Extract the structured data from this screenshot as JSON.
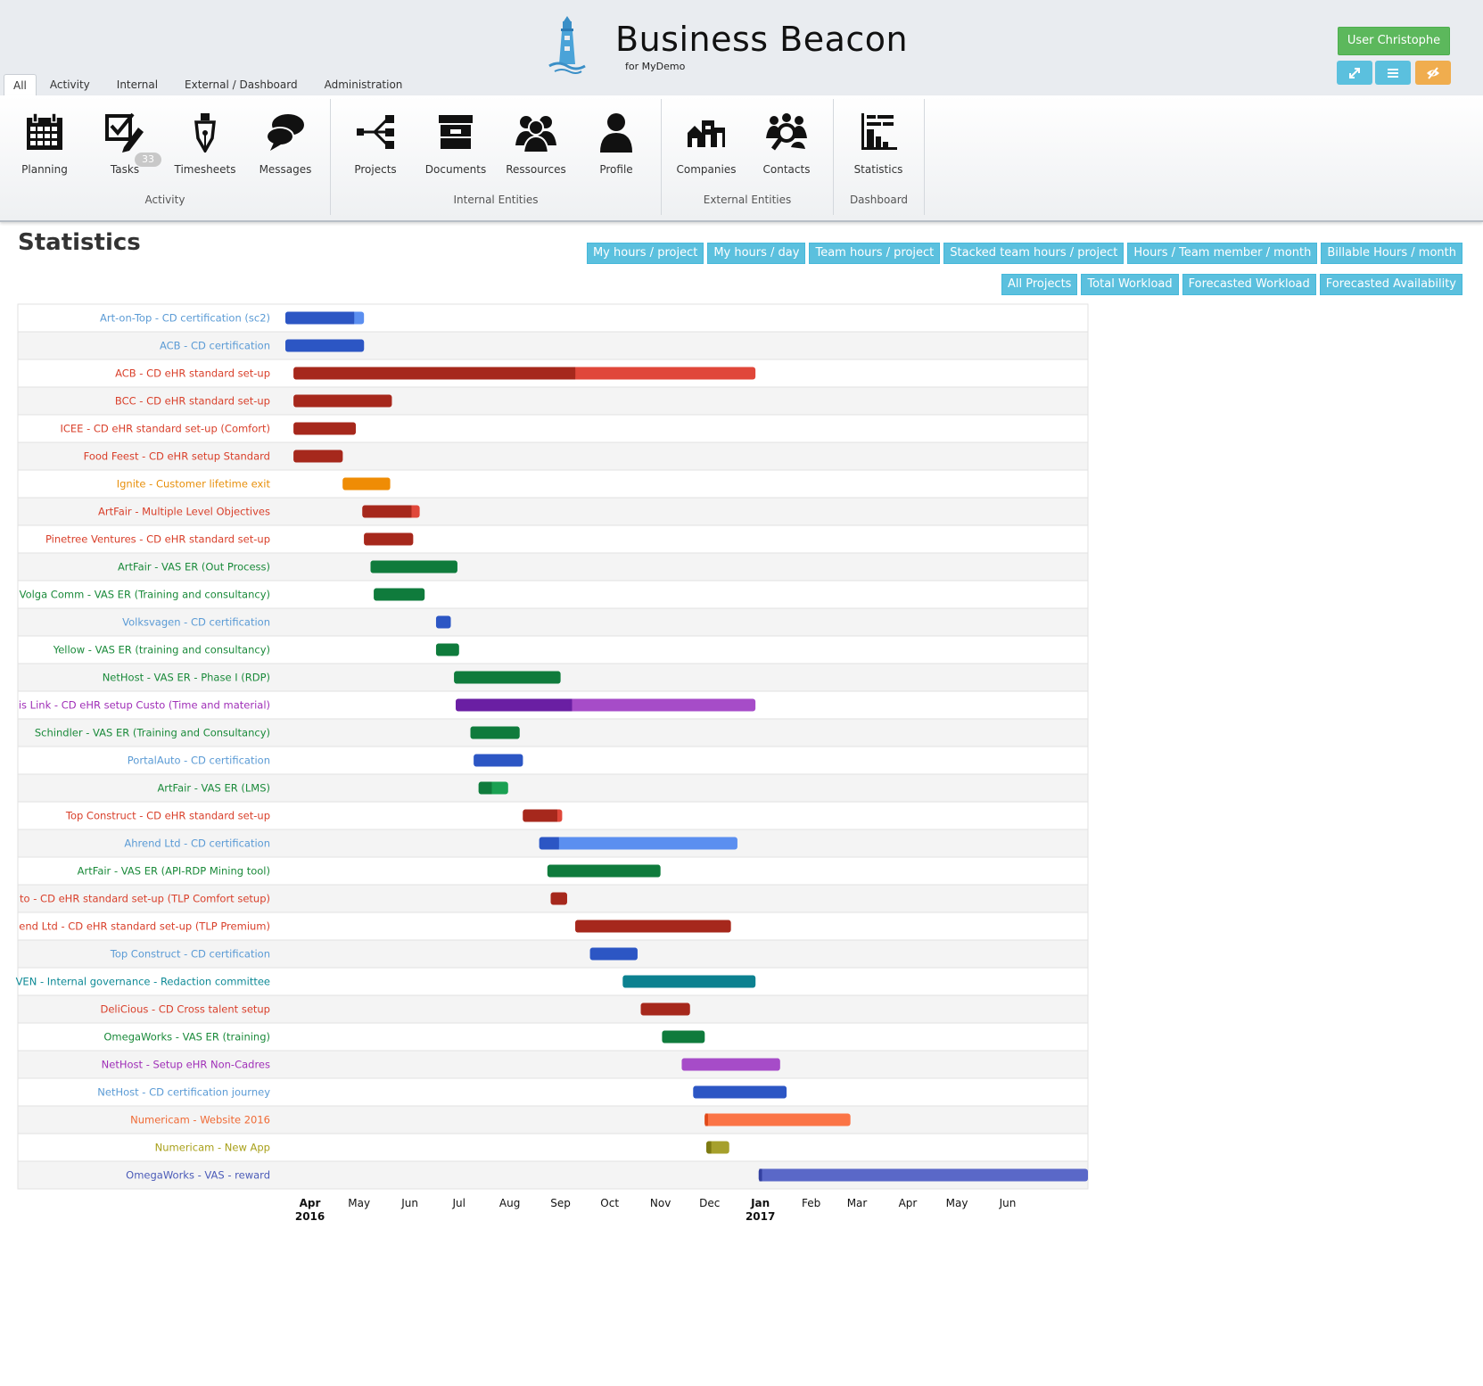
{
  "app": {
    "title": "Business Beacon",
    "subtitle": "for MyDemo",
    "user_button": "User Christophe",
    "icon_buttons": [
      {
        "icon": "expand-icon",
        "color": "#5bc0de"
      },
      {
        "icon": "menu-icon",
        "color": "#5bc0de"
      },
      {
        "icon": "eye-slash-icon",
        "color": "#f0ad4e"
      }
    ]
  },
  "tabs": [
    {
      "label": "All",
      "active": true
    },
    {
      "label": "Activity",
      "active": false
    },
    {
      "label": "Internal",
      "active": false
    },
    {
      "label": "External / Dashboard",
      "active": false
    },
    {
      "label": "Administration",
      "active": false
    }
  ],
  "ribbon": {
    "groups": [
      {
        "label": "Activity",
        "items": [
          {
            "label": "Planning",
            "icon": "calendar-icon"
          },
          {
            "label": "Tasks",
            "icon": "tasks-checkbox-icon",
            "badge": "33"
          },
          {
            "label": "Timesheets",
            "icon": "pen-nib-icon"
          },
          {
            "label": "Messages",
            "icon": "chat-bubbles-icon"
          }
        ]
      },
      {
        "label": "Internal Entities",
        "items": [
          {
            "label": "Projects",
            "icon": "project-tree-icon"
          },
          {
            "label": "Documents",
            "icon": "archive-box-icon"
          },
          {
            "label": "Ressources",
            "icon": "people-group-icon"
          },
          {
            "label": "Profile",
            "icon": "user-profile-icon"
          }
        ]
      },
      {
        "label": "External Entities",
        "items": [
          {
            "label": "Companies",
            "icon": "buildings-icon"
          },
          {
            "label": "Contacts",
            "icon": "contacts-search-icon"
          }
        ]
      },
      {
        "label": "Dashboard",
        "items": [
          {
            "label": "Statistics",
            "icon": "statistics-chart-icon"
          }
        ]
      }
    ]
  },
  "page": {
    "title": "Statistics",
    "buttons_row1": [
      "My hours / project",
      "My hours / day",
      "Team hours / project",
      "Stacked team hours / project",
      "Hours / Team member / month",
      "Billable Hours / month"
    ],
    "buttons_row2": [
      "All Projects",
      "Total Workload",
      "Forecasted Workload",
      "Forecasted Availability"
    ]
  },
  "chart_data": {
    "type": "gantt",
    "x_ticks": [
      {
        "label": "Apr",
        "sub": "2016",
        "date": "2016-04-01"
      },
      {
        "label": "May",
        "sub": "",
        "date": "2016-05-01"
      },
      {
        "label": "Jun",
        "sub": "",
        "date": "2016-06-01"
      },
      {
        "label": "Jul",
        "sub": "",
        "date": "2016-07-01"
      },
      {
        "label": "Aug",
        "sub": "",
        "date": "2016-08-01"
      },
      {
        "label": "Sep",
        "sub": "",
        "date": "2016-09-01"
      },
      {
        "label": "Oct",
        "sub": "",
        "date": "2016-10-01"
      },
      {
        "label": "Nov",
        "sub": "",
        "date": "2016-11-01"
      },
      {
        "label": "Dec",
        "sub": "",
        "date": "2016-12-01"
      },
      {
        "label": "Jan",
        "sub": "2017",
        "date": "2017-01-01"
      },
      {
        "label": "Feb",
        "sub": "",
        "date": "2017-02-01"
      },
      {
        "label": "Mar",
        "sub": "",
        "date": "2017-03-01"
      },
      {
        "label": "Apr",
        "sub": "",
        "date": "2017-04-01"
      },
      {
        "label": "May",
        "sub": "",
        "date": "2017-05-01"
      },
      {
        "label": "Jun",
        "sub": "",
        "date": "2017-06-01"
      }
    ],
    "xlim": [
      "2016-03-17",
      "2017-07-20"
    ],
    "rows": [
      {
        "label": "Art-on-Top - CD certification (sc2)",
        "color": "#5b9bd5",
        "start": "2016-03-17",
        "progress_end": "2016-04-28",
        "end": "2016-05-04",
        "c1": "#2c56c4",
        "c2": "#5b8ff0"
      },
      {
        "label": "ACB - CD certification",
        "color": "#5b9bd5",
        "start": "2016-03-17",
        "progress_end": "2016-05-04",
        "end": "2016-05-04",
        "c1": "#2c56c4",
        "c2": "#5b8ff0"
      },
      {
        "label": "ACB - CD eHR standard set-up",
        "color": "#d9402b",
        "start": "2016-03-22",
        "progress_end": "2016-09-10",
        "end": "2016-12-29",
        "c1": "#a6281c",
        "c2": "#e0473a"
      },
      {
        "label": "BCC - CD eHR standard set-up",
        "color": "#d9402b",
        "start": "2016-03-22",
        "progress_end": "2016-05-21",
        "end": "2016-05-21",
        "c1": "#a6281c",
        "c2": "#e0473a"
      },
      {
        "label": "ICEE - CD eHR standard set-up (Comfort)",
        "color": "#d9402b",
        "start": "2016-03-22",
        "progress_end": "2016-04-29",
        "end": "2016-04-29",
        "c1": "#a6281c",
        "c2": "#e0473a"
      },
      {
        "label": "Food Feest - CD eHR setup Standard",
        "color": "#d9402b",
        "start": "2016-03-22",
        "progress_end": "2016-04-21",
        "end": "2016-04-21",
        "c1": "#a6281c",
        "c2": "#e0473a"
      },
      {
        "label": "Ignite - Customer lifetime exit",
        "color": "#e8900c",
        "start": "2016-04-21",
        "progress_end": "2016-05-20",
        "end": "2016-05-20",
        "c1": "#ef8c05",
        "c2": "#f5a236"
      },
      {
        "label": "ArtFair - Multiple Level Objectives",
        "color": "#d9402b",
        "start": "2016-05-03",
        "progress_end": "2016-06-02",
        "end": "2016-06-07",
        "c1": "#a6281c",
        "c2": "#e0473a"
      },
      {
        "label": "Pinetree Ventures - CD eHR standard set-up",
        "color": "#d9402b",
        "start": "2016-05-04",
        "progress_end": "2016-06-03",
        "end": "2016-06-03",
        "c1": "#a6281c",
        "c2": "#e0473a"
      },
      {
        "label": "ArtFair - VAS ER (Out Process)",
        "color": "#1a8a3a",
        "start": "2016-05-08",
        "progress_end": "2016-06-30",
        "end": "2016-06-30",
        "c1": "#0f7b3c",
        "c2": "#1aa052"
      },
      {
        "label": "Volga Comm - VAS ER (Training and consultancy)",
        "color": "#1a8a3a",
        "start": "2016-05-10",
        "progress_end": "2016-06-10",
        "end": "2016-06-10",
        "c1": "#0f7b3c",
        "c2": "#1aa052"
      },
      {
        "label": "Volksvagen - CD certification",
        "color": "#5b9bd5",
        "start": "2016-06-17",
        "progress_end": "2016-06-26",
        "end": "2016-06-26",
        "c1": "#2c56c4",
        "c2": "#5b8ff0"
      },
      {
        "label": "Yellow - VAS ER (training and consultancy)",
        "color": "#1a8a3a",
        "start": "2016-06-17",
        "progress_end": "2016-07-01",
        "end": "2016-07-01",
        "c1": "#0f7b3c",
        "c2": "#1aa052"
      },
      {
        "label": "NetHost - VAS ER - Phase I (RDP)",
        "color": "#1a8a3a",
        "start": "2016-06-28",
        "progress_end": "2016-09-01",
        "end": "2016-09-01",
        "c1": "#0f7b3c",
        "c2": "#1aa052"
      },
      {
        "label": "is Link - CD eHR setup Custo (Time and material)",
        "color": "#a030b8",
        "start": "2016-06-29",
        "progress_end": "2016-09-08",
        "end": "2016-12-29",
        "c1": "#6a1fa3",
        "c2": "#a64cc8"
      },
      {
        "label": "Schindler - VAS ER (Training and Consultancy)",
        "color": "#1a8a3a",
        "start": "2016-07-08",
        "progress_end": "2016-08-07",
        "end": "2016-08-07",
        "c1": "#0f7b3c",
        "c2": "#1aa052"
      },
      {
        "label": "PortalAuto - CD certification",
        "color": "#5b9bd5",
        "start": "2016-07-10",
        "progress_end": "2016-08-09",
        "end": "2016-08-09",
        "c1": "#2c56c4",
        "c2": "#5b8ff0"
      },
      {
        "label": "ArtFair - VAS ER (LMS)",
        "color": "#1a8a3a",
        "start": "2016-07-13",
        "progress_end": "2016-07-21",
        "end": "2016-07-31",
        "c1": "#0f7b3c",
        "c2": "#1aa052"
      },
      {
        "label": "Top Construct - CD eHR standard set-up",
        "color": "#d9402b",
        "start": "2016-08-09",
        "progress_end": "2016-08-30",
        "end": "2016-09-02",
        "c1": "#a6281c",
        "c2": "#e0473a"
      },
      {
        "label": "Ahrend Ltd - CD certification",
        "color": "#5b9bd5",
        "start": "2016-08-19",
        "progress_end": "2016-08-31",
        "end": "2016-12-18",
        "c1": "#2c56c4",
        "c2": "#5b8ff0"
      },
      {
        "label": "ArtFair - VAS ER (API-RDP Mining tool)",
        "color": "#1a8a3a",
        "start": "2016-08-24",
        "progress_end": "2016-11-01",
        "end": "2016-11-01",
        "c1": "#0f7b3c",
        "c2": "#1aa052"
      },
      {
        "label": "to - CD eHR standard set-up (TLP Comfort setup)",
        "color": "#d9402b",
        "start": "2016-08-26",
        "progress_end": "2016-09-05",
        "end": "2016-09-05",
        "c1": "#a6281c",
        "c2": "#e0473a"
      },
      {
        "label": "end Ltd - CD eHR standard set-up (TLP Premium)",
        "color": "#d9402b",
        "start": "2016-09-10",
        "progress_end": "2016-12-14",
        "end": "2016-12-14",
        "c1": "#a6281c",
        "c2": "#e0473a"
      },
      {
        "label": "Top Construct - CD certification",
        "color": "#5b9bd5",
        "start": "2016-09-19",
        "progress_end": "2016-10-18",
        "end": "2016-10-18",
        "c1": "#2c56c4",
        "c2": "#5b8ff0"
      },
      {
        "label": "VEN - Internal governance - Redaction committee",
        "color": "#0e8a96",
        "start": "2016-10-09",
        "progress_end": "2016-12-29",
        "end": "2016-12-29",
        "c1": "#0c8190",
        "c2": "#16a0b0"
      },
      {
        "label": "DeliCious - CD Cross talent setup",
        "color": "#d9402b",
        "start": "2016-10-20",
        "progress_end": "2016-11-19",
        "end": "2016-11-19",
        "c1": "#a6281c",
        "c2": "#e0473a"
      },
      {
        "label": "OmegaWorks - VAS ER (training)",
        "color": "#1a8a3a",
        "start": "2016-11-02",
        "progress_end": "2016-11-28",
        "end": "2016-11-28",
        "c1": "#0f7b3c",
        "c2": "#1aa052"
      },
      {
        "label": "NetHost - Setup eHR Non-Cadres",
        "color": "#a030b8",
        "start": "2016-11-14",
        "progress_end": "2017-01-13",
        "end": "2017-01-13",
        "c1": "#a64cc8",
        "c2": "#a64cc8"
      },
      {
        "label": "NetHost - CD certification journey",
        "color": "#5b9bd5",
        "start": "2016-11-21",
        "progress_end": "2017-01-17",
        "end": "2017-01-17",
        "c1": "#2c56c4",
        "c2": "#5b8ff0"
      },
      {
        "label": "Numericam - Website 2016",
        "color": "#f06a35",
        "start": "2016-11-28",
        "progress_end": "2016-11-30",
        "end": "2017-02-25",
        "c1": "#e04a1a",
        "c2": "#fb7446"
      },
      {
        "label": "Numericam - New App",
        "color": "#a8a01a",
        "start": "2016-11-29",
        "progress_end": "2016-12-02",
        "end": "2016-12-13",
        "c1": "#7d7a12",
        "c2": "#a6a02c"
      },
      {
        "label": "OmegaWorks - VAS - reward",
        "color": "#4b5bb8",
        "start": "2016-12-31",
        "progress_end": "2017-01-02",
        "end": "2017-07-20",
        "c1": "#3340a0",
        "c2": "#5a68c8"
      }
    ]
  }
}
